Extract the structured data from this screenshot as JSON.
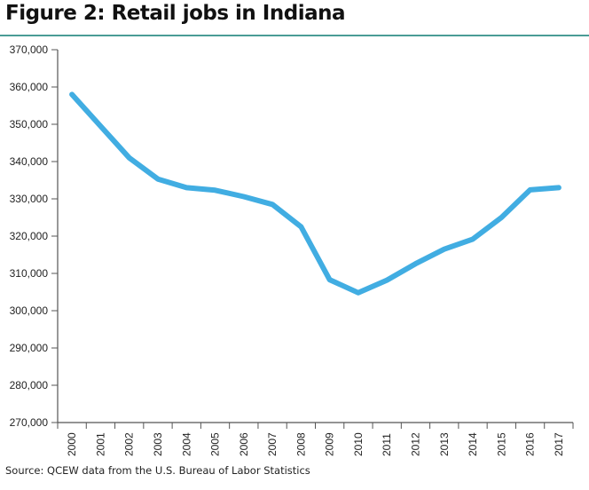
{
  "chart_data": {
    "type": "line",
    "title": "Figure 2: Retail jobs in Indiana",
    "xlabel": "",
    "ylabel": "",
    "source": "Source: QCEW data from the U.S. Bureau of Labor Statistics",
    "categories": [
      "2000",
      "2001",
      "2002",
      "2003",
      "2004",
      "2005",
      "2006",
      "2007",
      "2008",
      "2009",
      "2010",
      "2011",
      "2012",
      "2013",
      "2014",
      "2015",
      "2016",
      "2017"
    ],
    "series": [
      {
        "name": "Retail jobs",
        "color": "#41ade2",
        "values": [
          358000,
          349500,
          341000,
          335300,
          333000,
          332300,
          330600,
          328500,
          322500,
          308300,
          304800,
          308200,
          312600,
          316500,
          319200,
          325000,
          332400,
          333000
        ]
      }
    ],
    "ylim": [
      270000,
      370000
    ],
    "yticks": [
      270000,
      280000,
      290000,
      300000,
      310000,
      320000,
      330000,
      340000,
      350000,
      360000,
      370000
    ],
    "ytick_labels": [
      "270,000",
      "280,000",
      "290,000",
      "300,000",
      "310,000",
      "320,000",
      "330,000",
      "340,000",
      "350,000",
      "360,000",
      "370,000"
    ],
    "grid": false,
    "legend": "none",
    "colors": {
      "rule": "#4a9c96",
      "axis": "#555555"
    }
  }
}
